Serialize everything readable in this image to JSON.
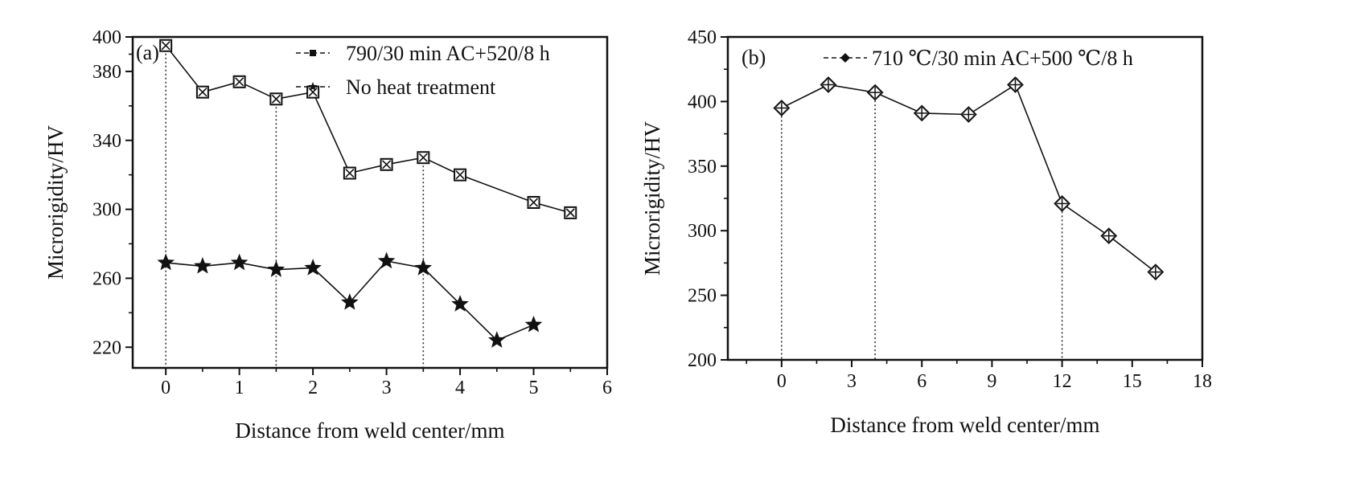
{
  "chart_data": [
    {
      "type": "line",
      "panel_label": "(a)",
      "xlabel": "Distance from weld center/mm",
      "ylabel": "Microrigidity/HV",
      "xlim": [
        -0.45,
        6
      ],
      "ylim": [
        208,
        400
      ],
      "xticks": [
        0,
        1,
        2,
        3,
        4,
        5,
        6
      ],
      "yticks": [
        220,
        260,
        300,
        340,
        380,
        400
      ],
      "grid": false,
      "legend_position": "top-right",
      "guide_lines_x": [
        0,
        1.5,
        3.5
      ],
      "series": [
        {
          "name": "790/30 min AC+520/8 h",
          "marker": "boxed-x-square",
          "x": [
            0,
            0.5,
            1,
            1.5,
            2,
            2.5,
            3,
            3.5,
            4,
            5,
            5.5
          ],
          "y": [
            395,
            368,
            374,
            364,
            368,
            321,
            326,
            330,
            320,
            304,
            298
          ]
        },
        {
          "name": "No heat treatment",
          "marker": "star",
          "x": [
            0,
            0.5,
            1,
            1.5,
            2,
            2.5,
            3,
            3.5,
            4,
            4.5,
            5
          ],
          "y": [
            269,
            267,
            269,
            265,
            266,
            246,
            270,
            266,
            245,
            224,
            233
          ]
        }
      ]
    },
    {
      "type": "line",
      "panel_label": "(b)",
      "xlabel": "Distance from weld center/mm",
      "ylabel": "Microrigidity/HV",
      "xlim": [
        -2.3,
        18
      ],
      "ylim": [
        200,
        450
      ],
      "xticks": [
        0,
        3,
        6,
        9,
        12,
        15,
        18
      ],
      "yticks": [
        200,
        250,
        300,
        350,
        400,
        450
      ],
      "grid": false,
      "legend_position": "top-left",
      "guide_lines_x": [
        0,
        4,
        12
      ],
      "series": [
        {
          "name": "710 ℃/30 min AC+500 ℃/8 h",
          "marker": "diamond-cross",
          "x": [
            0,
            2,
            4,
            6,
            8,
            10,
            12,
            14,
            16
          ],
          "y": [
            395,
            413,
            407,
            391,
            390,
            413,
            321,
            296,
            268
          ]
        }
      ]
    }
  ]
}
